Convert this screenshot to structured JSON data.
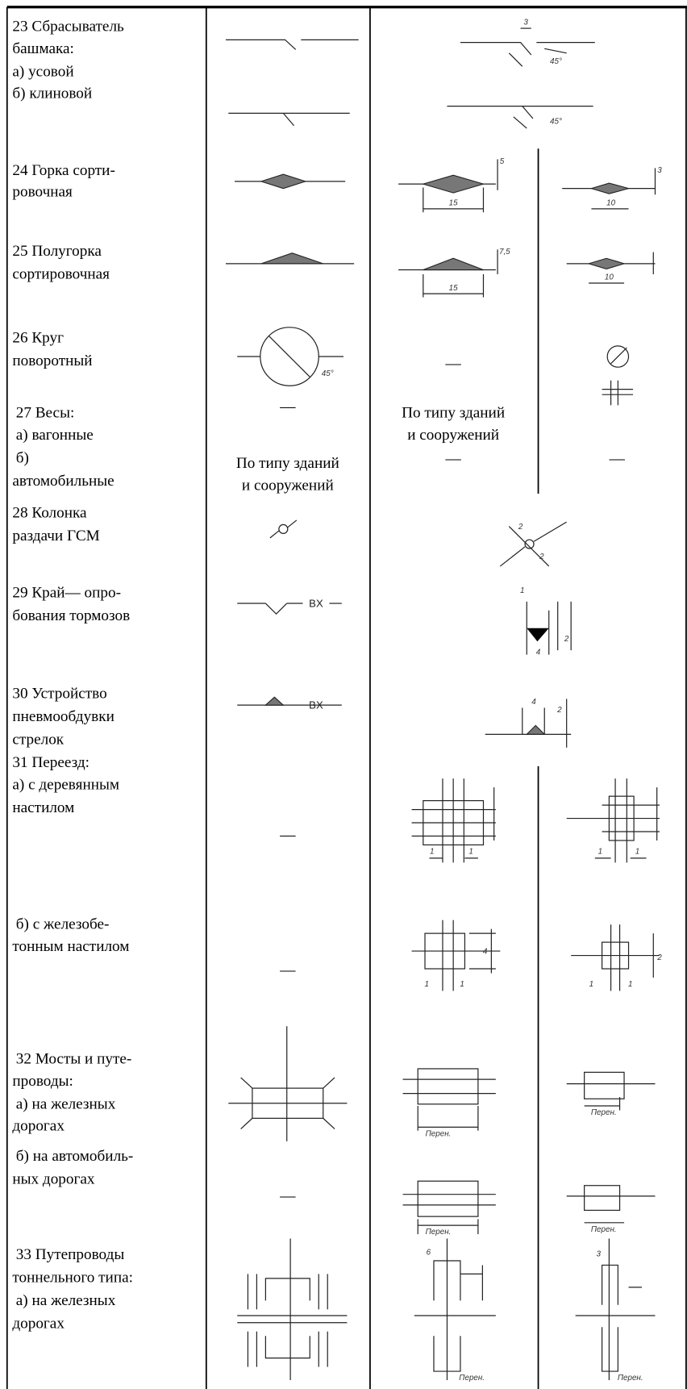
{
  "rows": [
    {
      "label": [
        "23 Сбрасыватель",
        "башмака:",
        "а) усовой",
        "б) клиновой"
      ],
      "c": [
        "3",
        "45°",
        "45°"
      ]
    },
    {
      "label": [
        "24 Горка сорти-",
        "ровочная"
      ],
      "c": [
        "5",
        "15"
      ],
      "d": [
        "3",
        "10"
      ]
    },
    {
      "label": [
        "25 Полугорка",
        "сортировочная"
      ],
      "c": [
        "7,5",
        "15"
      ],
      "d": [
        "10"
      ]
    },
    {
      "label": [
        "26 Круг",
        "поворотный"
      ],
      "b": [
        "45°"
      ],
      "c": [
        "—"
      ]
    },
    {
      "label": [
        "27 Весы:",
        "а) вагонные",
        "б)",
        "автомобильные"
      ],
      "b": [
        "—",
        "По типу зданий",
        "и сооружений"
      ],
      "c": [
        "По типу зданий",
        "и сооружений",
        "—"
      ],
      "d": [
        "—"
      ]
    },
    {
      "label": [
        "28 Колонка",
        "раздачи ГСМ"
      ],
      "c": [
        "2",
        "2"
      ]
    },
    {
      "label": [
        "29 Край— опро-",
        "бования тормозов"
      ],
      "b": [
        "BX"
      ],
      "c": [
        "1",
        "4",
        "2"
      ]
    },
    {
      "label": [
        "30 Устройство",
        "пневмообдувки",
        "стрелок"
      ],
      "b": [
        "BX"
      ],
      "c": [
        "4",
        "2"
      ]
    },
    {
      "label": [
        "31 Переезд:",
        "а) с деревянным",
        "настилом"
      ],
      "b": [
        "—"
      ],
      "c": [
        "1",
        "1"
      ],
      "d": [
        "1",
        "1"
      ]
    },
    {
      "label": [
        "б) с железобе-",
        "тонным настилом"
      ],
      "b": [
        "—"
      ],
      "c": [
        "1",
        "1",
        "4"
      ],
      "d": [
        "1",
        "1",
        "2"
      ]
    },
    {
      "label": [
        "32 Мосты и путе-",
        "проводы:",
        "а) на железных",
        "дорогах"
      ],
      "c": [
        "Перен."
      ],
      "d": [
        "Перен."
      ]
    },
    {
      "label": [
        "б) на автомобиль-",
        "ных дорогах"
      ],
      "b": [
        "—"
      ],
      "c": [
        "Перен."
      ],
      "d": [
        "Перен."
      ]
    },
    {
      "label": [
        "33 Путепроводы",
        "тоннельного типа:",
        "а) на железных",
        "дорогах"
      ],
      "c": [
        "6",
        "Перен."
      ],
      "d": [
        "3",
        "Перен."
      ]
    }
  ]
}
